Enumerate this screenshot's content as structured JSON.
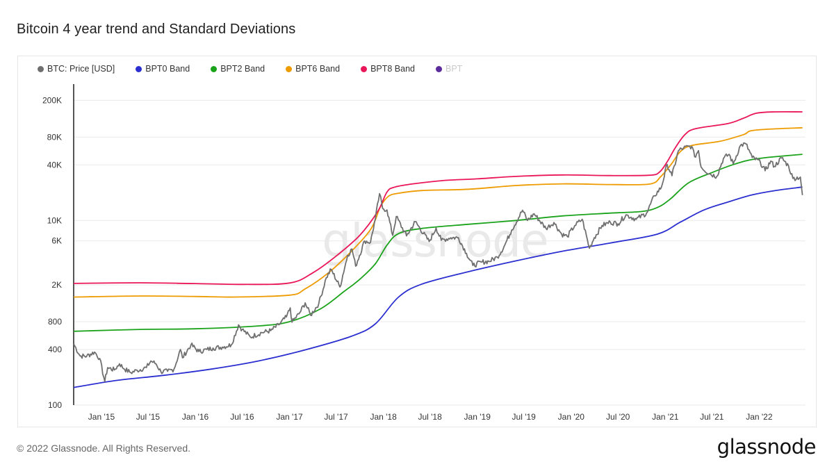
{
  "page": {
    "title": "Bitcoin 4 year trend and Standard Deviations",
    "copyright": "© 2022 Glassnode. All Rights Reserved.",
    "brand": "glassnode",
    "watermark": "glassnode"
  },
  "legend": [
    {
      "label": "BTC: Price [USD]",
      "color": "#6f6f6f"
    },
    {
      "label": "BPT0 Band",
      "color": "#2b2fd0"
    },
    {
      "label": "BPT2 Band",
      "color": "#1aa31a"
    },
    {
      "label": "BPT6 Band",
      "color": "#ee9b00"
    },
    {
      "label": "BPT8 Band",
      "color": "#ea1657"
    },
    {
      "label": "BPT",
      "color": "#5b2a9c",
      "muted": true
    }
  ],
  "chart_data": {
    "type": "line",
    "title": "Bitcoin 4 year trend and Standard Deviations",
    "y_scale": "log",
    "ylim": [
      100,
      300000
    ],
    "xlim": [
      "2014-09-15",
      "2022-06-30"
    ],
    "y_ticks": [
      {
        "value": 100,
        "label": "100"
      },
      {
        "value": 400,
        "label": "400"
      },
      {
        "value": 800,
        "label": "800"
      },
      {
        "value": 2000,
        "label": "2K"
      },
      {
        "value": 6000,
        "label": "6K"
      },
      {
        "value": 10000,
        "label": "10K"
      },
      {
        "value": 40000,
        "label": "40K"
      },
      {
        "value": 80000,
        "label": "80K"
      },
      {
        "value": 200000,
        "label": "200K"
      }
    ],
    "x_ticks": [
      {
        "value": "2015-01-01",
        "label": "Jan '15"
      },
      {
        "value": "2015-07-01",
        "label": "Jul '15"
      },
      {
        "value": "2016-01-01",
        "label": "Jan '16"
      },
      {
        "value": "2016-07-01",
        "label": "Jul '16"
      },
      {
        "value": "2017-01-01",
        "label": "Jan '17"
      },
      {
        "value": "2017-07-01",
        "label": "Jul '17"
      },
      {
        "value": "2018-01-01",
        "label": "Jan '18"
      },
      {
        "value": "2018-07-01",
        "label": "Jul '18"
      },
      {
        "value": "2019-01-01",
        "label": "Jan '19"
      },
      {
        "value": "2019-07-01",
        "label": "Jul '19"
      },
      {
        "value": "2020-01-01",
        "label": "Jan '20"
      },
      {
        "value": "2020-07-01",
        "label": "Jul '20"
      },
      {
        "value": "2021-01-01",
        "label": "Jan '21"
      },
      {
        "value": "2021-07-01",
        "label": "Jul '21"
      },
      {
        "value": "2022-01-01",
        "label": "Jan '22"
      }
    ],
    "grid": true,
    "legend_position": "top-left",
    "series": [
      {
        "name": "BTC: Price [USD]",
        "color": "#6f6f6f",
        "width": 1.8,
        "points": [
          [
            "2014-09-15",
            460
          ],
          [
            "2014-10-10",
            340
          ],
          [
            "2014-11-05",
            340
          ],
          [
            "2014-12-05",
            375
          ],
          [
            "2014-12-25",
            320
          ],
          [
            "2015-01-14",
            180
          ],
          [
            "2015-01-25",
            255
          ],
          [
            "2015-02-20",
            240
          ],
          [
            "2015-03-12",
            280
          ],
          [
            "2015-04-01",
            245
          ],
          [
            "2015-04-25",
            225
          ],
          [
            "2015-05-20",
            238
          ],
          [
            "2015-06-25",
            255
          ],
          [
            "2015-07-12",
            300
          ],
          [
            "2015-08-01",
            280
          ],
          [
            "2015-08-20",
            230
          ],
          [
            "2015-09-15",
            232
          ],
          [
            "2015-10-10",
            245
          ],
          [
            "2015-11-04",
            400
          ],
          [
            "2015-11-12",
            325
          ],
          [
            "2015-12-15",
            450
          ],
          [
            "2016-01-15",
            380
          ],
          [
            "2016-02-15",
            400
          ],
          [
            "2016-03-10",
            415
          ],
          [
            "2016-04-15",
            425
          ],
          [
            "2016-05-20",
            450
          ],
          [
            "2016-06-17",
            740
          ],
          [
            "2016-07-01",
            660
          ],
          [
            "2016-08-02",
            545
          ],
          [
            "2016-09-15",
            610
          ],
          [
            "2016-10-20",
            640
          ],
          [
            "2016-11-20",
            740
          ],
          [
            "2016-12-20",
            900
          ],
          [
            "2017-01-04",
            1130
          ],
          [
            "2017-01-11",
            790
          ],
          [
            "2017-02-10",
            1000
          ],
          [
            "2017-03-03",
            1280
          ],
          [
            "2017-03-24",
            940
          ],
          [
            "2017-04-25",
            1260
          ],
          [
            "2017-05-24",
            2400
          ],
          [
            "2017-06-12",
            2950
          ],
          [
            "2017-07-16",
            1900
          ],
          [
            "2017-08-15",
            4200
          ],
          [
            "2017-09-01",
            4900
          ],
          [
            "2017-09-15",
            3200
          ],
          [
            "2017-10-20",
            6000
          ],
          [
            "2017-11-12",
            5800
          ],
          [
            "2017-12-01",
            10500
          ],
          [
            "2017-12-17",
            19500
          ],
          [
            "2017-12-29",
            13500
          ],
          [
            "2018-01-15",
            13000
          ],
          [
            "2018-02-06",
            6900
          ],
          [
            "2018-02-20",
            11000
          ],
          [
            "2018-04-01",
            6800
          ],
          [
            "2018-05-05",
            9700
          ],
          [
            "2018-06-28",
            5900
          ],
          [
            "2018-07-25",
            8300
          ],
          [
            "2018-08-14",
            6100
          ],
          [
            "2018-09-20",
            6500
          ],
          [
            "2018-10-20",
            6500
          ],
          [
            "2018-11-20",
            4400
          ],
          [
            "2018-12-15",
            3250
          ],
          [
            "2019-01-20",
            3550
          ],
          [
            "2019-02-15",
            3600
          ],
          [
            "2019-03-20",
            4000
          ],
          [
            "2019-04-15",
            5200
          ],
          [
            "2019-05-15",
            7900
          ],
          [
            "2019-06-26",
            12900
          ],
          [
            "2019-07-15",
            10000
          ],
          [
            "2019-08-10",
            11800
          ],
          [
            "2019-09-25",
            8200
          ],
          [
            "2019-10-26",
            9500
          ],
          [
            "2019-11-25",
            7100
          ],
          [
            "2019-12-17",
            6700
          ],
          [
            "2020-01-15",
            8800
          ],
          [
            "2020-02-13",
            10300
          ],
          [
            "2020-03-12",
            5000
          ],
          [
            "2020-03-31",
            6500
          ],
          [
            "2020-04-30",
            8800
          ],
          [
            "2020-06-01",
            9600
          ],
          [
            "2020-07-01",
            9200
          ],
          [
            "2020-08-01",
            11500
          ],
          [
            "2020-09-10",
            10300
          ],
          [
            "2020-10-20",
            12000
          ],
          [
            "2020-11-20",
            18500
          ],
          [
            "2020-12-17",
            23000
          ],
          [
            "2021-01-08",
            40500
          ],
          [
            "2021-01-27",
            30500
          ],
          [
            "2021-02-21",
            57000
          ],
          [
            "2021-03-13",
            61000
          ],
          [
            "2021-04-14",
            63500
          ],
          [
            "2021-04-25",
            49000
          ],
          [
            "2021-05-10",
            57000
          ],
          [
            "2021-05-20",
            38000
          ],
          [
            "2021-06-22",
            32000
          ],
          [
            "2021-07-20",
            30000
          ],
          [
            "2021-08-15",
            47000
          ],
          [
            "2021-09-06",
            52000
          ],
          [
            "2021-09-22",
            41000
          ],
          [
            "2021-10-20",
            65000
          ],
          [
            "2021-11-10",
            67500
          ],
          [
            "2021-12-05",
            48000
          ],
          [
            "2022-01-05",
            43000
          ],
          [
            "2022-01-24",
            34500
          ],
          [
            "2022-02-15",
            44000
          ],
          [
            "2022-03-01",
            38500
          ],
          [
            "2022-03-29",
            47500
          ],
          [
            "2022-04-25",
            39000
          ],
          [
            "2022-05-12",
            28500
          ],
          [
            "2022-06-10",
            29500
          ],
          [
            "2022-06-18",
            18800
          ]
        ]
      },
      {
        "name": "BPT0 Band",
        "color": "#2b2fd0",
        "width": 1.8,
        "points": [
          [
            "2014-09-15",
            155
          ],
          [
            "2015-03-01",
            185
          ],
          [
            "2015-09-01",
            210
          ],
          [
            "2016-03-01",
            245
          ],
          [
            "2016-09-01",
            300
          ],
          [
            "2017-03-01",
            395
          ],
          [
            "2017-09-01",
            560
          ],
          [
            "2017-12-01",
            760
          ],
          [
            "2018-03-01",
            1480
          ],
          [
            "2018-06-01",
            2050
          ],
          [
            "2018-12-01",
            2800
          ],
          [
            "2019-06-01",
            3650
          ],
          [
            "2019-12-01",
            4650
          ],
          [
            "2020-06-01",
            5700
          ],
          [
            "2020-12-01",
            7100
          ],
          [
            "2021-03-01",
            9600
          ],
          [
            "2021-06-01",
            13000
          ],
          [
            "2021-09-01",
            15800
          ],
          [
            "2021-12-01",
            18800
          ],
          [
            "2022-03-01",
            21000
          ],
          [
            "2022-06-18",
            23000
          ]
        ]
      },
      {
        "name": "BPT2 Band",
        "color": "#1aa31a",
        "width": 1.8,
        "points": [
          [
            "2014-09-15",
            630
          ],
          [
            "2015-06-01",
            660
          ],
          [
            "2016-01-01",
            670
          ],
          [
            "2016-09-01",
            720
          ],
          [
            "2017-01-01",
            800
          ],
          [
            "2017-05-01",
            1100
          ],
          [
            "2017-08-01",
            1700
          ],
          [
            "2017-10-01",
            2300
          ],
          [
            "2017-12-01",
            3400
          ],
          [
            "2018-01-15",
            5400
          ],
          [
            "2018-03-01",
            7200
          ],
          [
            "2018-06-01",
            8200
          ],
          [
            "2018-12-01",
            9100
          ],
          [
            "2019-06-01",
            10000
          ],
          [
            "2019-12-01",
            11200
          ],
          [
            "2020-06-01",
            12000
          ],
          [
            "2020-10-01",
            12500
          ],
          [
            "2020-12-01",
            13800
          ],
          [
            "2021-01-20",
            17000
          ],
          [
            "2021-04-01",
            25500
          ],
          [
            "2021-07-01",
            33000
          ],
          [
            "2021-10-01",
            41000
          ],
          [
            "2022-01-01",
            47000
          ],
          [
            "2022-06-18",
            52000
          ]
        ]
      },
      {
        "name": "BPT6 Band",
        "color": "#ee9b00",
        "width": 1.8,
        "points": [
          [
            "2014-09-15",
            1480
          ],
          [
            "2015-06-01",
            1520
          ],
          [
            "2016-01-01",
            1500
          ],
          [
            "2016-06-01",
            1480
          ],
          [
            "2017-01-01",
            1550
          ],
          [
            "2017-03-01",
            1800
          ],
          [
            "2017-06-01",
            2700
          ],
          [
            "2017-09-01",
            4700
          ],
          [
            "2017-11-15",
            8200
          ],
          [
            "2017-12-20",
            14000
          ],
          [
            "2018-01-20",
            18200
          ],
          [
            "2018-03-01",
            19700
          ],
          [
            "2018-06-01",
            21100
          ],
          [
            "2018-12-01",
            21800
          ],
          [
            "2019-06-01",
            23900
          ],
          [
            "2019-12-01",
            24900
          ],
          [
            "2020-06-01",
            24500
          ],
          [
            "2020-11-01",
            24800
          ],
          [
            "2020-12-15",
            30000
          ],
          [
            "2021-01-25",
            41000
          ],
          [
            "2021-03-01",
            56000
          ],
          [
            "2021-04-15",
            65000
          ],
          [
            "2021-08-01",
            72000
          ],
          [
            "2021-11-01",
            85000
          ],
          [
            "2021-12-15",
            95000
          ],
          [
            "2022-06-18",
            101000
          ]
        ]
      },
      {
        "name": "BPT8 Band",
        "color": "#ea1657",
        "width": 1.8,
        "points": [
          [
            "2014-09-15",
            2080
          ],
          [
            "2015-06-01",
            2110
          ],
          [
            "2016-01-01",
            2070
          ],
          [
            "2016-07-01",
            2030
          ],
          [
            "2017-01-01",
            2100
          ],
          [
            "2017-04-01",
            2700
          ],
          [
            "2017-07-01",
            4100
          ],
          [
            "2017-10-01",
            6900
          ],
          [
            "2017-12-10",
            12500
          ],
          [
            "2018-01-15",
            20300
          ],
          [
            "2018-02-15",
            23000
          ],
          [
            "2018-05-01",
            25000
          ],
          [
            "2018-09-01",
            27200
          ],
          [
            "2019-01-01",
            28200
          ],
          [
            "2019-06-01",
            30000
          ],
          [
            "2019-12-01",
            31100
          ],
          [
            "2020-06-01",
            30600
          ],
          [
            "2020-11-01",
            30900
          ],
          [
            "2020-12-10",
            33500
          ],
          [
            "2021-01-10",
            44000
          ],
          [
            "2021-02-10",
            62000
          ],
          [
            "2021-03-20",
            86000
          ],
          [
            "2021-05-01",
            99000
          ],
          [
            "2021-09-01",
            112000
          ],
          [
            "2021-11-01",
            128000
          ],
          [
            "2021-12-20",
            145000
          ],
          [
            "2022-03-01",
            150000
          ],
          [
            "2022-06-18",
            150000
          ]
        ]
      }
    ]
  }
}
